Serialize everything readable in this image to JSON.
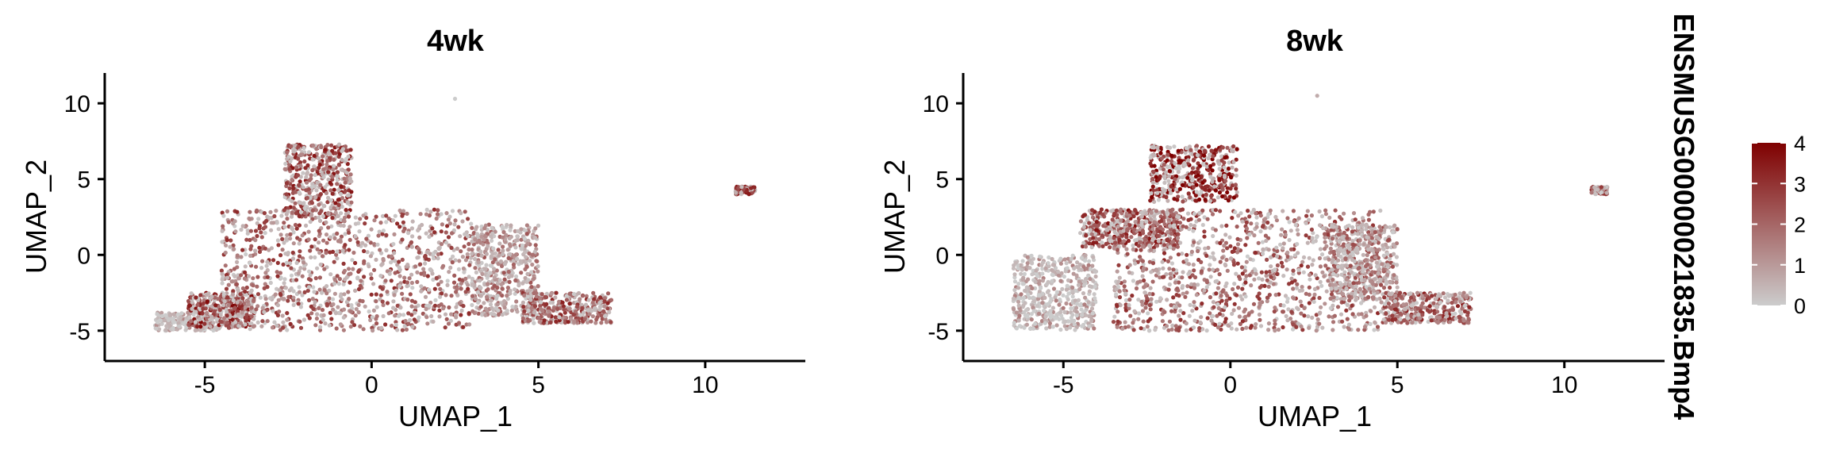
{
  "chart_data": [
    {
      "type": "scatter",
      "title": "4wk",
      "xlabel": "UMAP_1",
      "ylabel": "UMAP_2",
      "xlim": [
        -8,
        13
      ],
      "ylim": [
        -7,
        12
      ],
      "xticks": [
        -5,
        0,
        5,
        10
      ],
      "yticks": [
        -5,
        0,
        5,
        10
      ],
      "grid": false,
      "color_variable": "ENSMUSG00000021835.Bmp4",
      "representative_clusters": [
        {
          "region": "lower-left low-expression band",
          "x": [
            -6.5,
            -4.5
          ],
          "y": [
            -5,
            -3.8
          ],
          "expression": 0.2
        },
        {
          "region": "lower-left expressing cells",
          "x": [
            -5.5,
            -3.5
          ],
          "y": [
            -4.8,
            -2.5
          ],
          "expression": 2.8
        },
        {
          "region": "upper island",
          "x": [
            -2.6,
            -0.6
          ],
          "y": [
            2.5,
            7.3
          ],
          "expression": 2.5
        },
        {
          "region": "central mass",
          "x": [
            -4.5,
            3
          ],
          "y": [
            -5,
            3
          ],
          "expression": 2.0
        },
        {
          "region": "right side",
          "x": [
            3,
            5
          ],
          "y": [
            -4,
            2
          ],
          "expression": 1.2
        },
        {
          "region": "far right tail",
          "x": [
            4.5,
            7.2
          ],
          "y": [
            -4.5,
            -2.5
          ],
          "expression": 2.2
        },
        {
          "region": "isolated cluster",
          "x": [
            10.9,
            11.5
          ],
          "y": [
            4,
            4.5
          ],
          "expression": 3.0
        },
        {
          "region": "outlier",
          "x": [
            2.5,
            2.5
          ],
          "y": [
            10.3,
            10.3
          ],
          "expression": 0.1
        }
      ]
    },
    {
      "type": "scatter",
      "title": "8wk",
      "xlabel": "UMAP_1",
      "ylabel": "UMAP_2",
      "xlim": [
        -8,
        13
      ],
      "ylim": [
        -7,
        12
      ],
      "xticks": [
        -5,
        0,
        5,
        10
      ],
      "yticks": [
        -5,
        0,
        5,
        10
      ],
      "grid": false,
      "color_variable": "ENSMUSG00000021835.Bmp4",
      "representative_clusters": [
        {
          "region": "upper dense cluster",
          "x": [
            -2.4,
            0.2
          ],
          "y": [
            3.5,
            7.2
          ],
          "expression": 3.3
        },
        {
          "region": "left arm",
          "x": [
            -4.5,
            -1.5
          ],
          "y": [
            0.5,
            3
          ],
          "expression": 2.6
        },
        {
          "region": "far left low-expression",
          "x": [
            -6.5,
            -4
          ],
          "y": [
            -5,
            0
          ],
          "expression": 0.4
        },
        {
          "region": "central mass",
          "x": [
            -3.5,
            4.5
          ],
          "y": [
            -5,
            3
          ],
          "expression": 2.0
        },
        {
          "region": "right side",
          "x": [
            3,
            5
          ],
          "y": [
            -3,
            2
          ],
          "expression": 1.4
        },
        {
          "region": "far right tail",
          "x": [
            4.5,
            7.2
          ],
          "y": [
            -4.5,
            -2.5
          ],
          "expression": 2.2
        },
        {
          "region": "isolated cluster",
          "x": [
            10.8,
            11.3
          ],
          "y": [
            4,
            4.5
          ],
          "expression": 2.2
        },
        {
          "region": "outlier",
          "x": [
            2.6,
            2.6
          ],
          "y": [
            10.5,
            10.5
          ],
          "expression": 0.1
        }
      ]
    }
  ],
  "legend": {
    "title": "ENSMUSG00000021835.Bmp4",
    "ticks": [
      "0",
      "1",
      "2",
      "3",
      "4"
    ],
    "tick_values": [
      0,
      1,
      2,
      3,
      4
    ],
    "color_low": "#cccccc",
    "color_high": "#7f0000",
    "placement": "right"
  }
}
